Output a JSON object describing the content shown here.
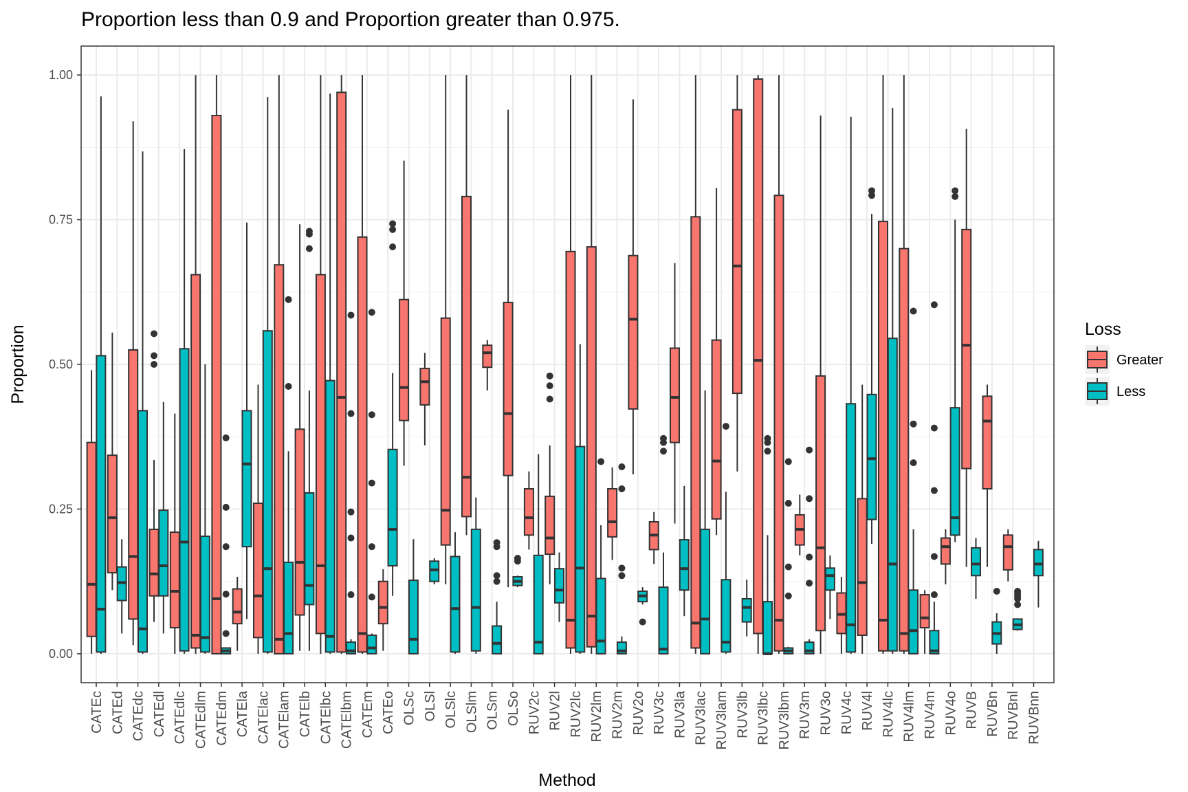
{
  "chart_data": {
    "type": "boxplot",
    "title": "Proportion less than 0.9 and Proportion greater than 0.975.",
    "xlabel": "Method",
    "ylabel": "Proportion",
    "ylim": [
      -0.05,
      1.05
    ],
    "yticks": [
      "0.00",
      "0.25",
      "0.50",
      "0.75",
      "1.00"
    ],
    "ytick_values": [
      0,
      0.25,
      0.5,
      0.75,
      1.0
    ],
    "grid": true,
    "legend": {
      "title": "Loss",
      "placement": "right",
      "entries": [
        {
          "name": "Greater",
          "color": "#F8766D"
        },
        {
          "name": "Less",
          "color": "#00BFC4"
        }
      ]
    },
    "categories": [
      "CATEc",
      "CATEd",
      "CATEdc",
      "CATEdl",
      "CATEdlc",
      "CATEdlm",
      "CATEdm",
      "CATEla",
      "CATElac",
      "CATElam",
      "CATElb",
      "CATElbc",
      "CATElbm",
      "CATEm",
      "CATEo",
      "OLSc",
      "OLSl",
      "OLSlc",
      "OLSlm",
      "OLSm",
      "OLSo",
      "RUV2c",
      "RUV2l",
      "RUV2lc",
      "RUV2lm",
      "RUV2m",
      "RUV2o",
      "RUV3c",
      "RUV3la",
      "RUV3lac",
      "RUV3lam",
      "RUV3lb",
      "RUV3lbc",
      "RUV3lbm",
      "RUV3m",
      "RUV3o",
      "RUV4c",
      "RUV4l",
      "RUV4lc",
      "RUV4lm",
      "RUV4m",
      "RUV4o",
      "RUVB",
      "RUVBn",
      "RUVBnl",
      "RUVBnn"
    ],
    "series": [
      {
        "name": "Greater",
        "color": "#F8766D",
        "boxes": [
          {
            "min": 0.0,
            "q1": 0.03,
            "median": 0.12,
            "q3": 0.365,
            "max": 0.49,
            "outliers": []
          },
          {
            "min": 0.11,
            "q1": 0.14,
            "median": 0.235,
            "q3": 0.343,
            "max": 0.555,
            "outliers": []
          },
          {
            "min": 0.015,
            "q1": 0.06,
            "median": 0.168,
            "q3": 0.525,
            "max": 0.92,
            "outliers": []
          },
          {
            "min": 0.055,
            "q1": 0.1,
            "median": 0.138,
            "q3": 0.215,
            "max": 0.335,
            "outliers": [
              0.5,
              0.515,
              0.553
            ]
          },
          {
            "min": 0.0,
            "q1": 0.045,
            "median": 0.108,
            "q3": 0.21,
            "max": 0.415,
            "outliers": []
          },
          {
            "min": 0.0,
            "q1": 0.01,
            "median": 0.032,
            "q3": 0.655,
            "max": 1.0,
            "outliers": []
          },
          {
            "min": 0.0,
            "q1": 0.0,
            "median": 0.095,
            "q3": 0.93,
            "max": 1.0,
            "outliers": []
          },
          {
            "min": 0.005,
            "q1": 0.052,
            "median": 0.072,
            "q3": 0.112,
            "max": 0.133,
            "outliers": []
          },
          {
            "min": 0.0,
            "q1": 0.028,
            "median": 0.1,
            "q3": 0.26,
            "max": 0.465,
            "outliers": []
          },
          {
            "min": 0.0,
            "q1": 0.0,
            "median": 0.025,
            "q3": 0.672,
            "max": 1.0,
            "outliers": []
          },
          {
            "min": 0.005,
            "q1": 0.067,
            "median": 0.158,
            "q3": 0.388,
            "max": 0.742,
            "outliers": []
          },
          {
            "min": 0.0,
            "q1": 0.035,
            "median": 0.152,
            "q3": 0.655,
            "max": 1.0,
            "outliers": []
          },
          {
            "min": 0.0,
            "q1": 0.003,
            "median": 0.443,
            "q3": 0.97,
            "max": 1.0,
            "outliers": []
          },
          {
            "min": 0.0,
            "q1": 0.003,
            "median": 0.035,
            "q3": 0.72,
            "max": 1.0,
            "outliers": []
          },
          {
            "min": 0.005,
            "q1": 0.052,
            "median": 0.08,
            "q3": 0.125,
            "max": 0.146,
            "outliers": []
          },
          {
            "min": 0.325,
            "q1": 0.403,
            "median": 0.46,
            "q3": 0.612,
            "max": 0.852,
            "outliers": []
          },
          {
            "min": 0.36,
            "q1": 0.43,
            "median": 0.47,
            "q3": 0.493,
            "max": 0.52,
            "outliers": []
          },
          {
            "min": 0.12,
            "q1": 0.188,
            "median": 0.248,
            "q3": 0.58,
            "max": 1.0,
            "outliers": []
          },
          {
            "min": 0.205,
            "q1": 0.237,
            "median": 0.305,
            "q3": 0.79,
            "max": 1.0,
            "outliers": []
          },
          {
            "min": 0.455,
            "q1": 0.495,
            "median": 0.52,
            "q3": 0.533,
            "max": 0.542,
            "outliers": []
          },
          {
            "min": 0.115,
            "q1": 0.308,
            "median": 0.415,
            "q3": 0.607,
            "max": 0.94,
            "outliers": []
          },
          {
            "min": 0.18,
            "q1": 0.205,
            "median": 0.235,
            "q3": 0.285,
            "max": 0.315,
            "outliers": []
          },
          {
            "min": 0.12,
            "q1": 0.172,
            "median": 0.2,
            "q3": 0.272,
            "max": 0.36,
            "outliers": [
              0.44,
              0.463,
              0.48
            ]
          },
          {
            "min": 0.0,
            "q1": 0.01,
            "median": 0.058,
            "q3": 0.695,
            "max": 1.0,
            "outliers": []
          },
          {
            "min": 0.0,
            "q1": 0.012,
            "median": 0.065,
            "q3": 0.703,
            "max": 1.0,
            "outliers": []
          },
          {
            "min": 0.162,
            "q1": 0.202,
            "median": 0.228,
            "q3": 0.285,
            "max": 0.322,
            "outliers": []
          },
          {
            "min": 0.31,
            "q1": 0.423,
            "median": 0.578,
            "q3": 0.688,
            "max": 0.958,
            "outliers": []
          },
          {
            "min": 0.155,
            "q1": 0.18,
            "median": 0.205,
            "q3": 0.228,
            "max": 0.245,
            "outliers": []
          },
          {
            "min": 0.225,
            "q1": 0.365,
            "median": 0.443,
            "q3": 0.528,
            "max": 0.675,
            "outliers": []
          },
          {
            "min": 0.0,
            "q1": 0.01,
            "median": 0.053,
            "q3": 0.755,
            "max": 1.0,
            "outliers": []
          },
          {
            "min": 0.205,
            "q1": 0.233,
            "median": 0.333,
            "q3": 0.542,
            "max": 0.805,
            "outliers": []
          },
          {
            "min": 0.315,
            "q1": 0.45,
            "median": 0.67,
            "q3": 0.94,
            "max": 1.0,
            "outliers": []
          },
          {
            "min": 0.0,
            "q1": 0.035,
            "median": 0.507,
            "q3": 0.993,
            "max": 1.0,
            "outliers": []
          },
          {
            "min": 0.0,
            "q1": 0.005,
            "median": 0.058,
            "q3": 0.792,
            "max": 1.0,
            "outliers": []
          },
          {
            "min": 0.17,
            "q1": 0.188,
            "median": 0.215,
            "q3": 0.24,
            "max": 0.275,
            "outliers": []
          },
          {
            "min": 0.0,
            "q1": 0.04,
            "median": 0.183,
            "q3": 0.48,
            "max": 0.93,
            "outliers": []
          },
          {
            "min": 0.0,
            "q1": 0.035,
            "median": 0.068,
            "q3": 0.105,
            "max": 0.133,
            "outliers": []
          },
          {
            "min": 0.0,
            "q1": 0.032,
            "median": 0.123,
            "q3": 0.268,
            "max": 0.465,
            "outliers": []
          },
          {
            "min": 0.0,
            "q1": 0.005,
            "median": 0.058,
            "q3": 0.747,
            "max": 1.0,
            "outliers": []
          },
          {
            "min": 0.0,
            "q1": 0.005,
            "median": 0.035,
            "q3": 0.7,
            "max": 1.0,
            "outliers": []
          },
          {
            "min": 0.0,
            "q1": 0.045,
            "median": 0.062,
            "q3": 0.102,
            "max": 0.11,
            "outliers": []
          },
          {
            "min": 0.12,
            "q1": 0.155,
            "median": 0.185,
            "q3": 0.2,
            "max": 0.215,
            "outliers": []
          },
          {
            "min": 0.15,
            "q1": 0.32,
            "median": 0.533,
            "q3": 0.733,
            "max": 0.907,
            "outliers": []
          },
          {
            "min": 0.15,
            "q1": 0.285,
            "median": 0.402,
            "q3": 0.445,
            "max": 0.465,
            "outliers": []
          },
          {
            "min": 0.125,
            "q1": 0.145,
            "median": 0.185,
            "q3": 0.205,
            "max": 0.215,
            "outliers": []
          }
        ]
      },
      {
        "name": "Less",
        "color": "#00BFC4",
        "boxes": [
          {
            "min": 0.0,
            "q1": 0.003,
            "median": 0.077,
            "q3": 0.515,
            "max": 0.963,
            "outliers": []
          },
          {
            "min": 0.035,
            "q1": 0.092,
            "median": 0.123,
            "q3": 0.15,
            "max": 0.198,
            "outliers": []
          },
          {
            "min": 0.0,
            "q1": 0.003,
            "median": 0.043,
            "q3": 0.42,
            "max": 0.868,
            "outliers": []
          },
          {
            "min": 0.035,
            "q1": 0.1,
            "median": 0.152,
            "q3": 0.248,
            "max": 0.435,
            "outliers": []
          },
          {
            "min": 0.0,
            "q1": 0.005,
            "median": 0.193,
            "q3": 0.527,
            "max": 0.872,
            "outliers": []
          },
          {
            "min": 0.0,
            "q1": 0.003,
            "median": 0.028,
            "q3": 0.203,
            "max": 0.5,
            "outliers": []
          },
          {
            "min": 0.0,
            "q1": 0.0,
            "median": 0.005,
            "q3": 0.01,
            "max": 0.01,
            "outliers": [
              0.035,
              0.103,
              0.185,
              0.253,
              0.373
            ]
          },
          {
            "min": 0.06,
            "q1": 0.185,
            "median": 0.328,
            "q3": 0.42,
            "max": 0.745,
            "outliers": []
          },
          {
            "min": 0.0,
            "q1": 0.003,
            "median": 0.147,
            "q3": 0.558,
            "max": 0.962,
            "outliers": []
          },
          {
            "min": 0.0,
            "q1": 0.0,
            "median": 0.035,
            "q3": 0.158,
            "max": 0.35,
            "outliers": [
              0.462,
              0.612
            ]
          },
          {
            "min": 0.005,
            "q1": 0.085,
            "median": 0.118,
            "q3": 0.278,
            "max": 0.455,
            "outliers": [
              0.7,
              0.725,
              0.73
            ]
          },
          {
            "min": 0.0,
            "q1": 0.003,
            "median": 0.03,
            "q3": 0.472,
            "max": 0.968,
            "outliers": []
          },
          {
            "min": 0.0,
            "q1": 0.0,
            "median": 0.005,
            "q3": 0.02,
            "max": 0.025,
            "outliers": [
              0.102,
              0.2,
              0.245,
              0.415,
              0.585
            ]
          },
          {
            "min": 0.0,
            "q1": 0.0,
            "median": 0.01,
            "q3": 0.032,
            "max": 0.035,
            "outliers": [
              0.098,
              0.185,
              0.295,
              0.413,
              0.59
            ]
          },
          {
            "min": 0.1,
            "q1": 0.152,
            "median": 0.215,
            "q3": 0.353,
            "max": 0.485,
            "outliers": [
              0.703,
              0.733,
              0.743
            ]
          },
          {
            "min": 0.0,
            "q1": 0.0,
            "median": 0.025,
            "q3": 0.127,
            "max": 0.198,
            "outliers": []
          },
          {
            "min": 0.12,
            "q1": 0.125,
            "median": 0.145,
            "q3": 0.16,
            "max": 0.165,
            "outliers": []
          },
          {
            "min": 0.0,
            "q1": 0.003,
            "median": 0.078,
            "q3": 0.168,
            "max": 0.21,
            "outliers": []
          },
          {
            "min": 0.0,
            "q1": 0.005,
            "median": 0.08,
            "q3": 0.215,
            "max": 0.27,
            "outliers": []
          },
          {
            "min": 0.0,
            "q1": 0.0,
            "median": 0.018,
            "q3": 0.048,
            "max": 0.09,
            "outliers": [
              0.125,
              0.135,
              0.185,
              0.192
            ]
          },
          {
            "min": 0.115,
            "q1": 0.118,
            "median": 0.125,
            "q3": 0.133,
            "max": 0.135,
            "outliers": [
              0.16,
              0.165
            ]
          },
          {
            "min": 0.0,
            "q1": 0.0,
            "median": 0.02,
            "q3": 0.17,
            "max": 0.345,
            "outliers": []
          },
          {
            "min": 0.055,
            "q1": 0.088,
            "median": 0.11,
            "q3": 0.147,
            "max": 0.175,
            "outliers": []
          },
          {
            "min": 0.0,
            "q1": 0.003,
            "median": 0.148,
            "q3": 0.358,
            "max": 0.535,
            "outliers": []
          },
          {
            "min": 0.0,
            "q1": 0.0,
            "median": 0.022,
            "q3": 0.13,
            "max": 0.222,
            "outliers": [
              0.332
            ]
          },
          {
            "min": 0.0,
            "q1": 0.0,
            "median": 0.005,
            "q3": 0.02,
            "max": 0.03,
            "outliers": [
              0.135,
              0.148,
              0.285,
              0.323
            ]
          },
          {
            "min": 0.085,
            "q1": 0.09,
            "median": 0.1,
            "q3": 0.108,
            "max": 0.115,
            "outliers": [
              0.055
            ]
          },
          {
            "min": 0.0,
            "q1": 0.0,
            "median": 0.008,
            "q3": 0.115,
            "max": 0.175,
            "outliers": [
              0.35,
              0.365,
              0.372
            ]
          },
          {
            "min": 0.065,
            "q1": 0.11,
            "median": 0.147,
            "q3": 0.197,
            "max": 0.29,
            "outliers": []
          },
          {
            "min": 0.0,
            "q1": 0.0,
            "median": 0.06,
            "q3": 0.215,
            "max": 0.455,
            "outliers": []
          },
          {
            "min": 0.0,
            "q1": 0.003,
            "median": 0.02,
            "q3": 0.128,
            "max": 0.28,
            "outliers": [
              0.393
            ]
          },
          {
            "min": 0.03,
            "q1": 0.055,
            "median": 0.08,
            "q3": 0.095,
            "max": 0.128,
            "outliers": []
          },
          {
            "min": 0.0,
            "q1": 0.0,
            "median": 0.0,
            "q3": 0.09,
            "max": 0.205,
            "outliers": [
              0.35,
              0.365,
              0.372
            ]
          },
          {
            "min": 0.0,
            "q1": 0.0,
            "median": 0.005,
            "q3": 0.01,
            "max": 0.012,
            "outliers": [
              0.1,
              0.15,
              0.26,
              0.332
            ]
          },
          {
            "min": 0.0,
            "q1": 0.0,
            "median": 0.005,
            "q3": 0.02,
            "max": 0.025,
            "outliers": [
              0.122,
              0.167,
              0.268,
              0.352
            ]
          },
          {
            "min": 0.06,
            "q1": 0.11,
            "median": 0.135,
            "q3": 0.148,
            "max": 0.17,
            "outliers": []
          },
          {
            "min": 0.0,
            "q1": 0.003,
            "median": 0.05,
            "q3": 0.432,
            "max": 0.928,
            "outliers": []
          },
          {
            "min": 0.19,
            "q1": 0.232,
            "median": 0.337,
            "q3": 0.448,
            "max": 0.76,
            "outliers": [
              0.792,
              0.8
            ]
          },
          {
            "min": 0.0,
            "q1": 0.005,
            "median": 0.155,
            "q3": 0.545,
            "max": 0.943,
            "outliers": []
          },
          {
            "min": 0.0,
            "q1": 0.0,
            "median": 0.04,
            "q3": 0.11,
            "max": 0.215,
            "outliers": [
              0.33,
              0.397,
              0.592
            ]
          },
          {
            "min": 0.0,
            "q1": 0.0,
            "median": 0.005,
            "q3": 0.04,
            "max": 0.09,
            "outliers": [
              0.102,
              0.168,
              0.282,
              0.39,
              0.603
            ]
          },
          {
            "min": 0.193,
            "q1": 0.205,
            "median": 0.235,
            "q3": 0.425,
            "max": 0.75,
            "outliers": [
              0.79,
              0.8
            ]
          },
          {
            "min": 0.095,
            "q1": 0.135,
            "median": 0.155,
            "q3": 0.183,
            "max": 0.2,
            "outliers": []
          },
          {
            "min": 0.0,
            "q1": 0.017,
            "median": 0.035,
            "q3": 0.055,
            "max": 0.07,
            "outliers": [
              0.108
            ]
          },
          {
            "min": 0.04,
            "q1": 0.042,
            "median": 0.05,
            "q3": 0.06,
            "max": 0.06,
            "outliers": [
              0.085,
              0.095,
              0.1,
              0.105,
              0.108
            ]
          },
          {
            "min": 0.08,
            "q1": 0.135,
            "median": 0.155,
            "q3": 0.18,
            "max": 0.195,
            "outliers": []
          }
        ]
      }
    ]
  }
}
